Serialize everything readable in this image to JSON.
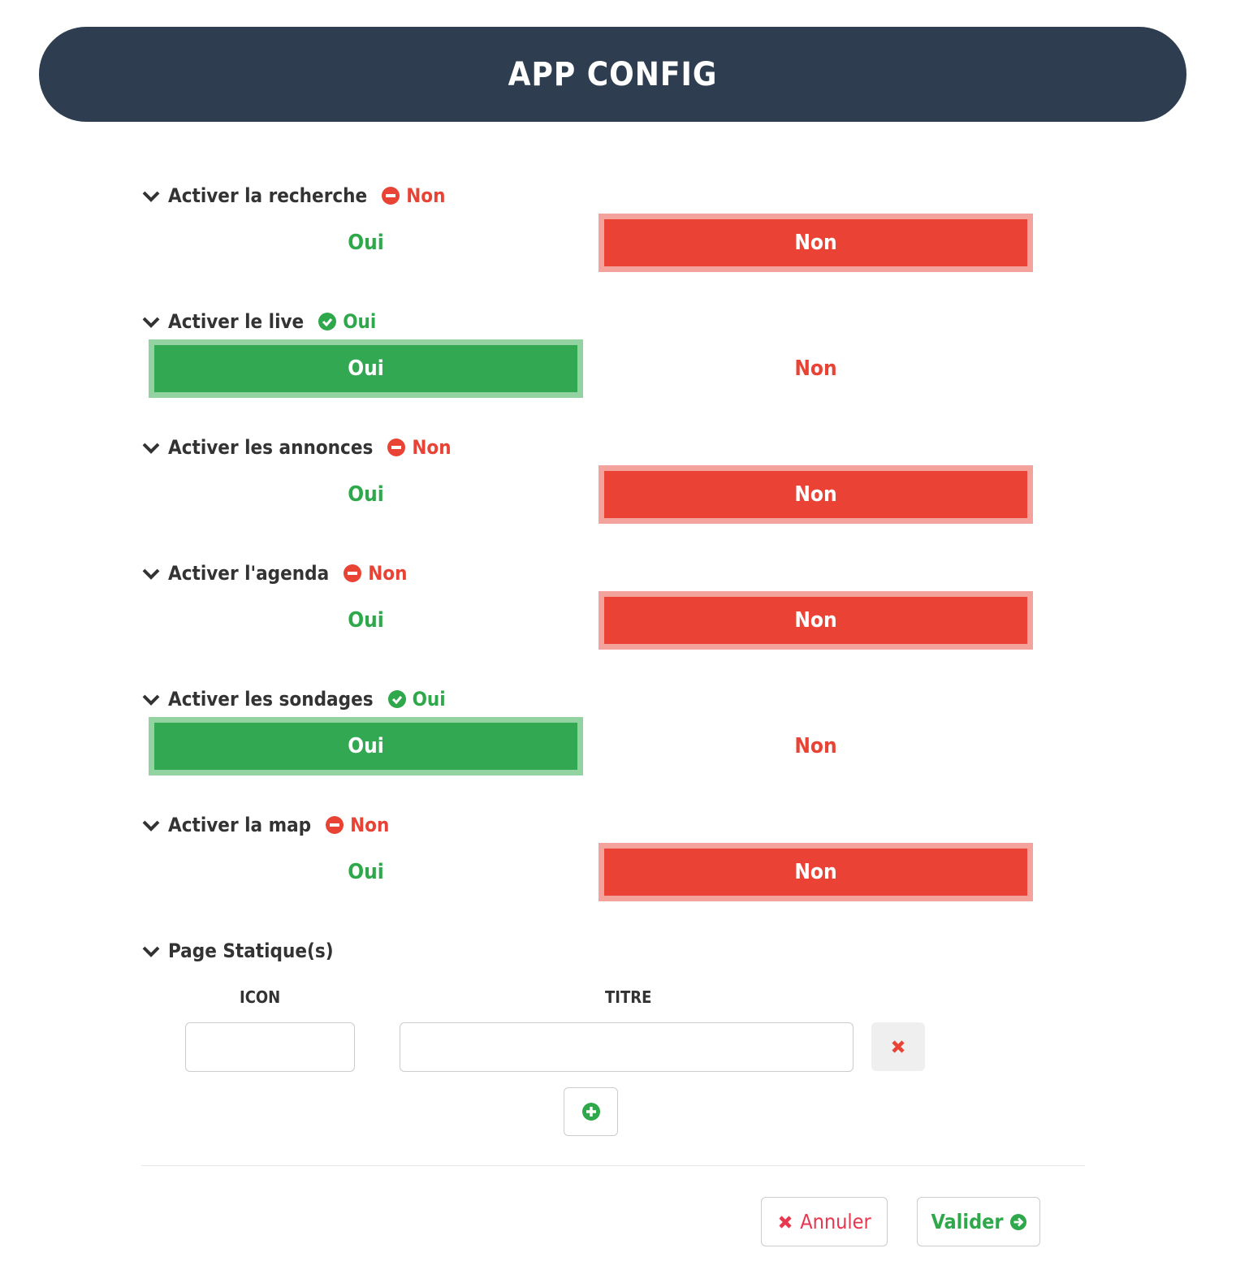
{
  "header": {
    "title": "APP CONFIG"
  },
  "colors": {
    "header": "#2e3e50",
    "green": "#33a852",
    "red": "#ea4335"
  },
  "sections": [
    {
      "label": "Activer la recherche",
      "status": "Non",
      "value": "non"
    },
    {
      "label": "Activer le live",
      "status": "Oui",
      "value": "oui"
    },
    {
      "label": "Activer les annonces",
      "status": "Non",
      "value": "non"
    },
    {
      "label": "Activer l'agenda",
      "status": "Non",
      "value": "non"
    },
    {
      "label": "Activer les sondages",
      "status": "Oui",
      "value": "oui"
    },
    {
      "label": "Activer la map",
      "status": "Non",
      "value": "non"
    }
  ],
  "options": {
    "oui": "Oui",
    "non": "Non"
  },
  "static_pages": {
    "label": "Page Statique(s)",
    "col_icon": "ICON",
    "col_titre": "TITRE",
    "rows": [
      {
        "icon": "",
        "titre": ""
      }
    ]
  },
  "footer": {
    "cancel": "Annuler",
    "submit": "Valider"
  }
}
